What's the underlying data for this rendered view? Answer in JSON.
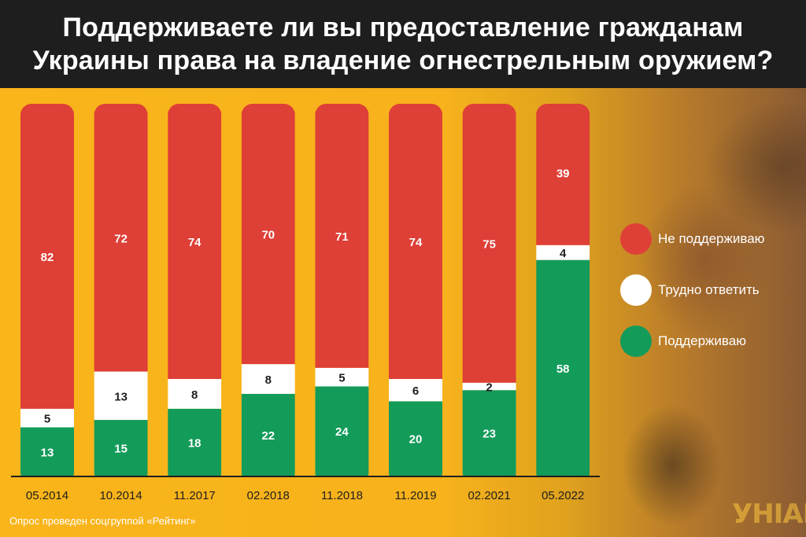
{
  "header": {
    "title": "Поддерживаете ли вы предоставление гражданам\nУкраины права на владение огнестрельным оружием?"
  },
  "legend": [
    {
      "label": "Не поддерживаю",
      "color": "#de3f36"
    },
    {
      "label": "Трудно ответить",
      "color": "#ffffff"
    },
    {
      "label": "Поддерживаю",
      "color": "#139b5a"
    }
  ],
  "source": "Опрос проведен соцгруппой «Рейтинг»",
  "logo": "УНІАН",
  "colors": {
    "background": "#f7b21c",
    "header": "#1e1e1e",
    "oppose": "#de3f36",
    "hard": "#ffffff",
    "support": "#139b5a"
  },
  "chart_data": {
    "type": "bar",
    "stacked": true,
    "categories": [
      "05.2014",
      "10.2014",
      "11.2017",
      "02.2018",
      "11.2018",
      "11.2019",
      "02.2021",
      "05.2022"
    ],
    "series": [
      {
        "name": "Поддерживаю",
        "values": [
          13,
          15,
          18,
          22,
          24,
          20,
          23,
          58
        ]
      },
      {
        "name": "Трудно ответить",
        "values": [
          5,
          13,
          8,
          8,
          5,
          6,
          2,
          4
        ]
      },
      {
        "name": "Не поддерживаю",
        "values": [
          82,
          72,
          74,
          70,
          71,
          74,
          75,
          39
        ]
      }
    ],
    "ylim": [
      0,
      100
    ],
    "legend_position": "right"
  }
}
